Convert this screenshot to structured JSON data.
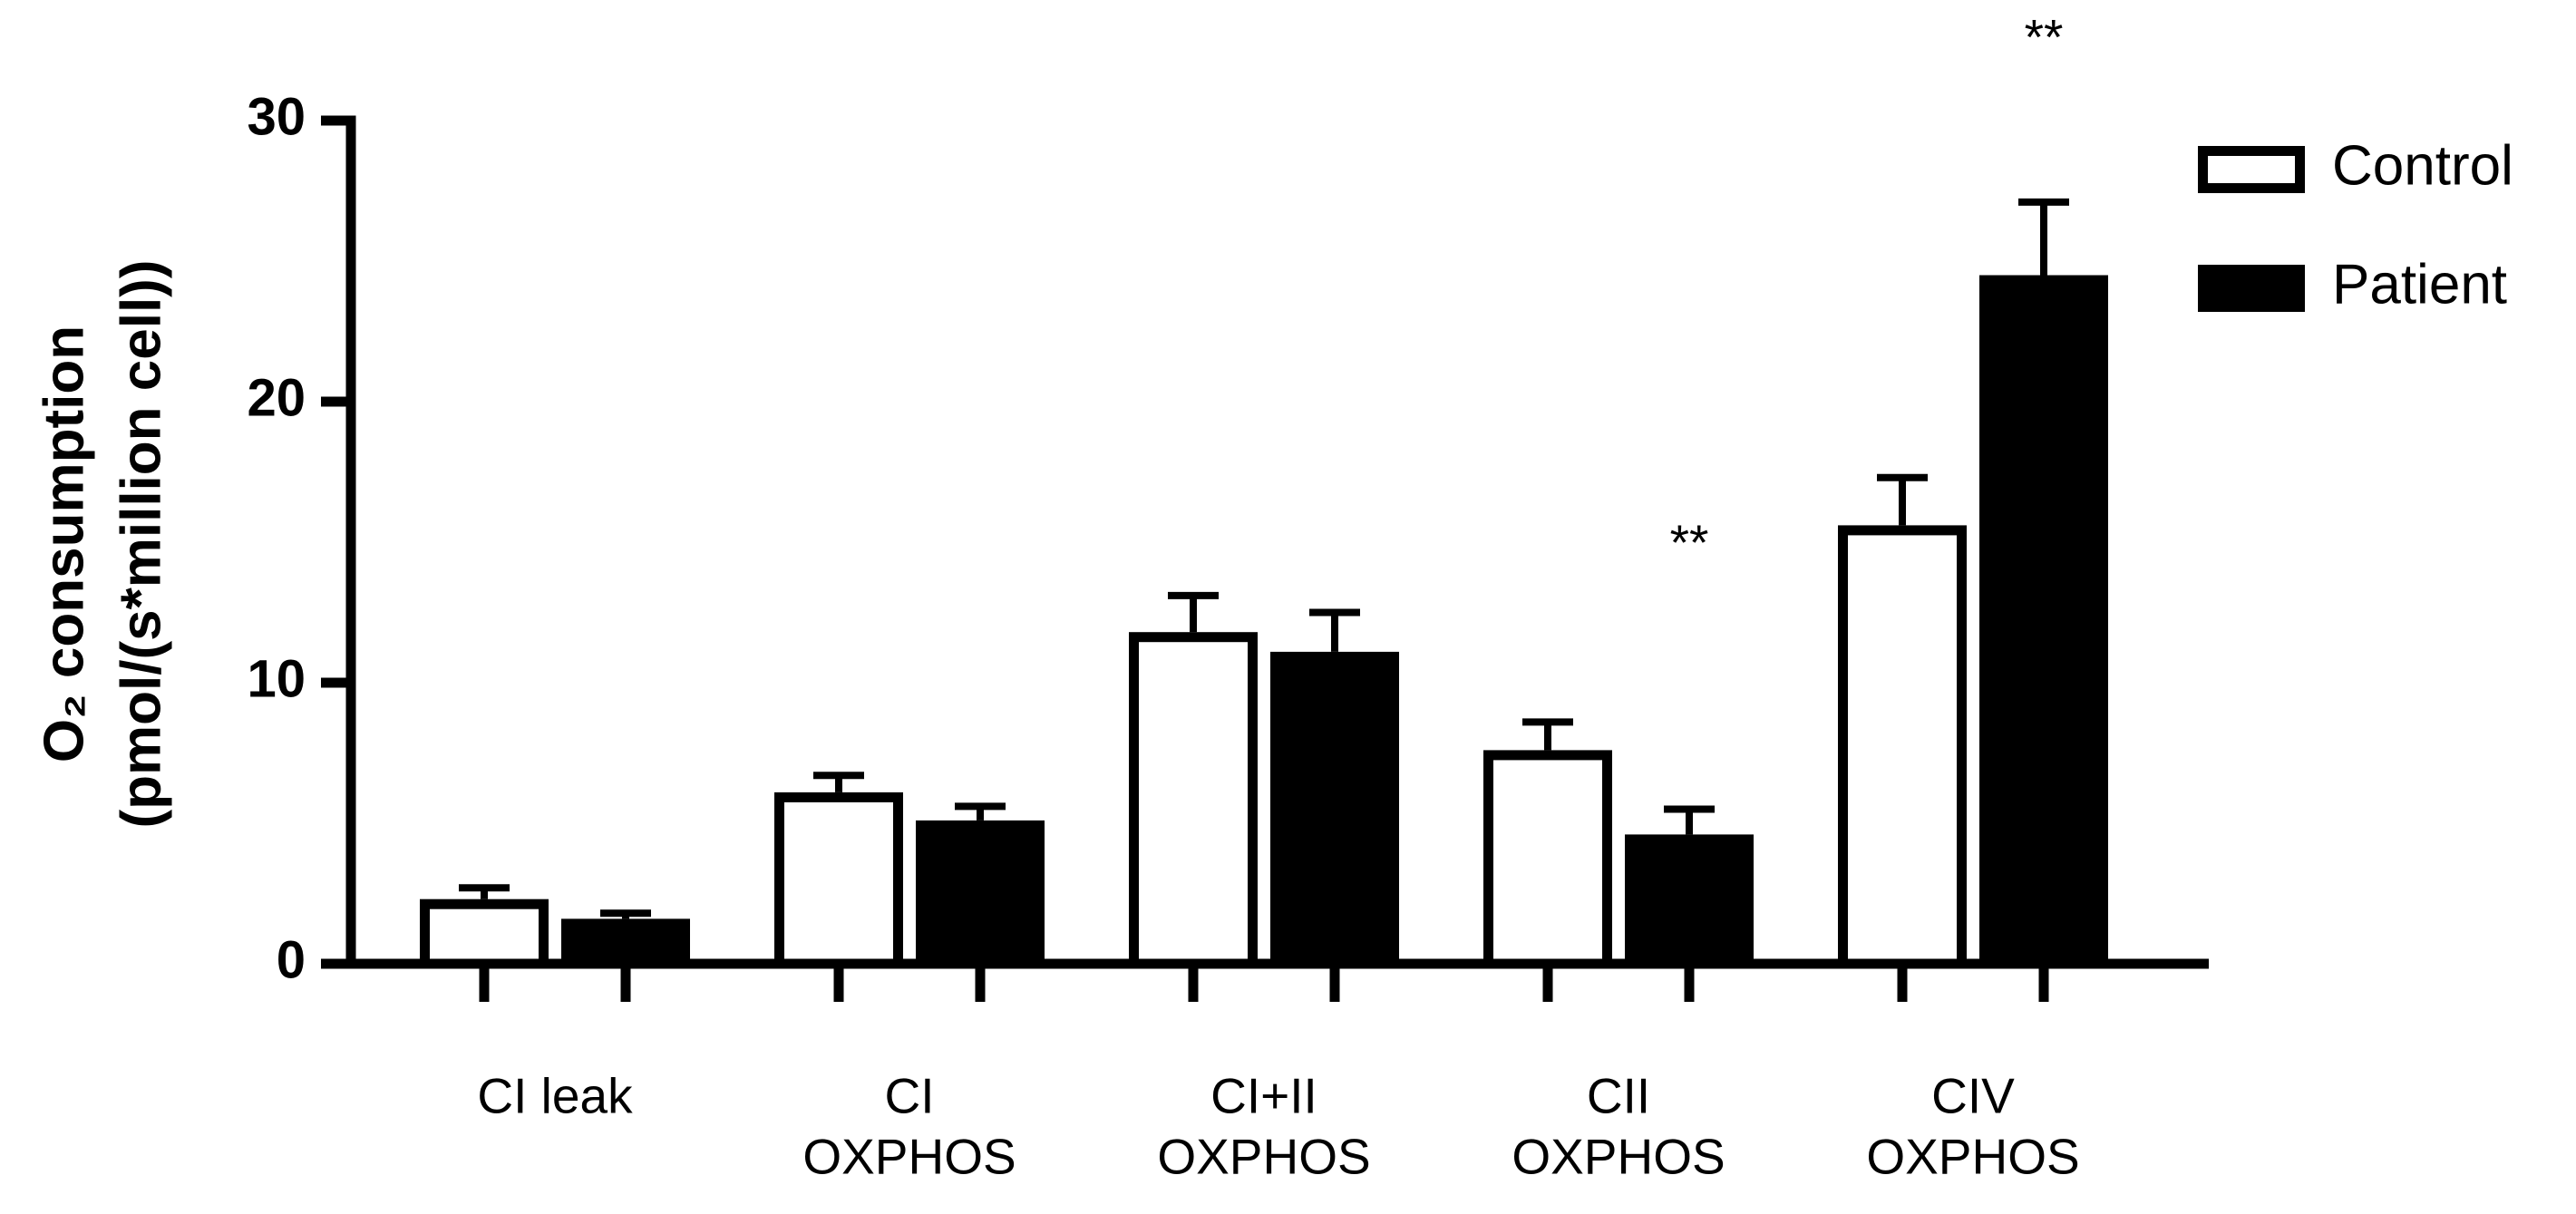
{
  "chart_data": {
    "type": "bar",
    "ylabel": [
      "O₂ consumption",
      "(pmol/(s*million cell))"
    ],
    "categories": [
      [
        "CI leak"
      ],
      [
        "CI",
        "OXPHOS"
      ],
      [
        "CI+II",
        "OXPHOS"
      ],
      [
        "CII",
        "OXPHOS"
      ],
      [
        "CIV",
        "OXPHOS"
      ]
    ],
    "series": [
      {
        "name": "Control",
        "color": "#ffffff",
        "values": [
          2.3,
          6.1,
          11.8,
          7.6,
          15.6
        ],
        "errors": [
          0.4,
          0.6,
          1.3,
          1.0,
          1.7
        ]
      },
      {
        "name": "Patient",
        "color": "#000000",
        "values": [
          1.6,
          5.1,
          11.1,
          4.6,
          24.5
        ],
        "errors": [
          0.2,
          0.5,
          1.4,
          0.9,
          2.6
        ],
        "significance": [
          null,
          null,
          null,
          "**",
          "**"
        ]
      }
    ],
    "ylim": [
      0,
      30
    ],
    "yticks": [
      0,
      10,
      20,
      30
    ],
    "legend": "upper right"
  }
}
